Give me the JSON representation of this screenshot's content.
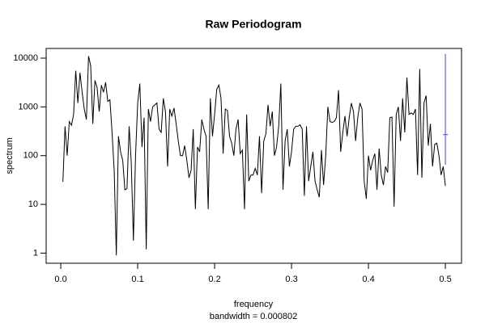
{
  "chart_data": {
    "type": "line",
    "title": "Raw Periodogram",
    "x_label": "frequency",
    "subtitle": "bandwidth = 0.000802",
    "y_label": "spectrum",
    "color": "#000000",
    "log_y": true,
    "x": [
      0.00278,
      0.00556,
      0.00833,
      0.01111,
      0.01389,
      0.01667,
      0.01944,
      0.02222,
      0.025,
      0.02778,
      0.03056,
      0.03333,
      0.03611,
      0.03889,
      0.04167,
      0.04444,
      0.04722,
      0.05,
      0.05278,
      0.05556,
      0.05833,
      0.06111,
      0.06389,
      0.06667,
      0.06944,
      0.07222,
      0.075,
      0.07778,
      0.08056,
      0.08333,
      0.08611,
      0.08889,
      0.09167,
      0.09444,
      0.09722,
      0.1,
      0.10278,
      0.10556,
      0.10833,
      0.11111,
      0.11389,
      0.11667,
      0.11944,
      0.12222,
      0.125,
      0.12778,
      0.13056,
      0.13333,
      0.13611,
      0.13889,
      0.14167,
      0.14444,
      0.14722,
      0.15,
      0.15278,
      0.15556,
      0.15833,
      0.16111,
      0.16389,
      0.16667,
      0.16944,
      0.17222,
      0.175,
      0.17778,
      0.18056,
      0.18333,
      0.18611,
      0.18889,
      0.19167,
      0.19444,
      0.19722,
      0.2,
      0.20278,
      0.20556,
      0.20833,
      0.21111,
      0.21389,
      0.21667,
      0.21944,
      0.22222,
      0.225,
      0.22778,
      0.23056,
      0.23333,
      0.23611,
      0.23889,
      0.24167,
      0.24444,
      0.24722,
      0.25,
      0.25278,
      0.25556,
      0.25833,
      0.26111,
      0.26389,
      0.26667,
      0.26944,
      0.27222,
      0.275,
      0.27778,
      0.28056,
      0.28333,
      0.28611,
      0.28889,
      0.29167,
      0.29444,
      0.29722,
      0.3,
      0.30278,
      0.30556,
      0.30833,
      0.31111,
      0.31389,
      0.31667,
      0.31944,
      0.32222,
      0.325,
      0.32778,
      0.33056,
      0.33333,
      0.33611,
      0.33889,
      0.34167,
      0.34444,
      0.34722,
      0.35,
      0.35278,
      0.35556,
      0.35833,
      0.36111,
      0.36389,
      0.36667,
      0.36944,
      0.37222,
      0.375,
      0.37778,
      0.38056,
      0.38333,
      0.38611,
      0.38889,
      0.39167,
      0.39444,
      0.39722,
      0.4,
      0.40278,
      0.40556,
      0.40833,
      0.41111,
      0.41389,
      0.41667,
      0.41944,
      0.42222,
      0.425,
      0.42778,
      0.43056,
      0.43333,
      0.43611,
      0.43889,
      0.44167,
      0.44444,
      0.44722,
      0.45,
      0.45278,
      0.45556,
      0.45833,
      0.46111,
      0.46389,
      0.46667,
      0.46944,
      0.47222,
      0.475,
      0.47778,
      0.48056,
      0.48333,
      0.48611,
      0.48889,
      0.49167,
      0.49444,
      0.49722,
      0.5
    ],
    "values": [
      29,
      400,
      100,
      500,
      420,
      700,
      5500,
      1200,
      5000,
      2000,
      900,
      550,
      11000,
      7000,
      450,
      3500,
      2500,
      800,
      2800,
      2000,
      3200,
      1300,
      1400,
      300,
      50,
      0.9,
      250,
      120,
      80,
      20,
      21,
      400,
      70,
      1.8,
      100,
      1200,
      3000,
      150,
      600,
      1.2,
      900,
      500,
      1000,
      1100,
      1200,
      350,
      300,
      1500,
      800,
      60,
      900,
      650,
      950,
      450,
      200,
      100,
      100,
      160,
      80,
      35,
      50,
      350,
      8,
      150,
      120,
      550,
      350,
      250,
      8,
      1500,
      250,
      700,
      2300,
      2800,
      1500,
      110,
      900,
      850,
      250,
      180,
      100,
      350,
      550,
      110,
      130,
      8,
      700,
      30,
      40,
      40,
      55,
      40,
      250,
      17,
      200,
      280,
      1100,
      400,
      800,
      100,
      150,
      400,
      3000,
      20,
      200,
      350,
      60,
      120,
      350,
      400,
      400,
      430,
      350,
      15,
      400,
      30,
      60,
      120,
      30,
      20,
      14,
      130,
      25,
      100,
      1000,
      500,
      480,
      500,
      600,
      2200,
      120,
      300,
      650,
      250,
      600,
      1200,
      800,
      200,
      600,
      1200,
      900,
      30,
      13,
      100,
      50,
      80,
      110,
      20,
      140,
      40,
      25,
      60,
      45,
      600,
      620,
      9,
      700,
      1000,
      200,
      1500,
      300,
      4000,
      700,
      750,
      700,
      900,
      40,
      6000,
      35,
      1200,
      1700,
      160,
      450,
      60,
      170,
      180,
      100,
      40,
      60,
      24
    ],
    "ci": {
      "x": 0.5,
      "lower": 65,
      "upper": 12300,
      "center": 270,
      "color": "#4040ff"
    },
    "xlim": [
      -0.019,
      0.521
    ],
    "ylim": [
      0.62,
      15800
    ],
    "xticks": [
      {
        "value": 0,
        "label": "0.0"
      },
      0.1,
      0.2,
      0.3,
      0.4,
      0.5
    ],
    "yticks": [
      1,
      10,
      100,
      1000,
      10000
    ]
  }
}
